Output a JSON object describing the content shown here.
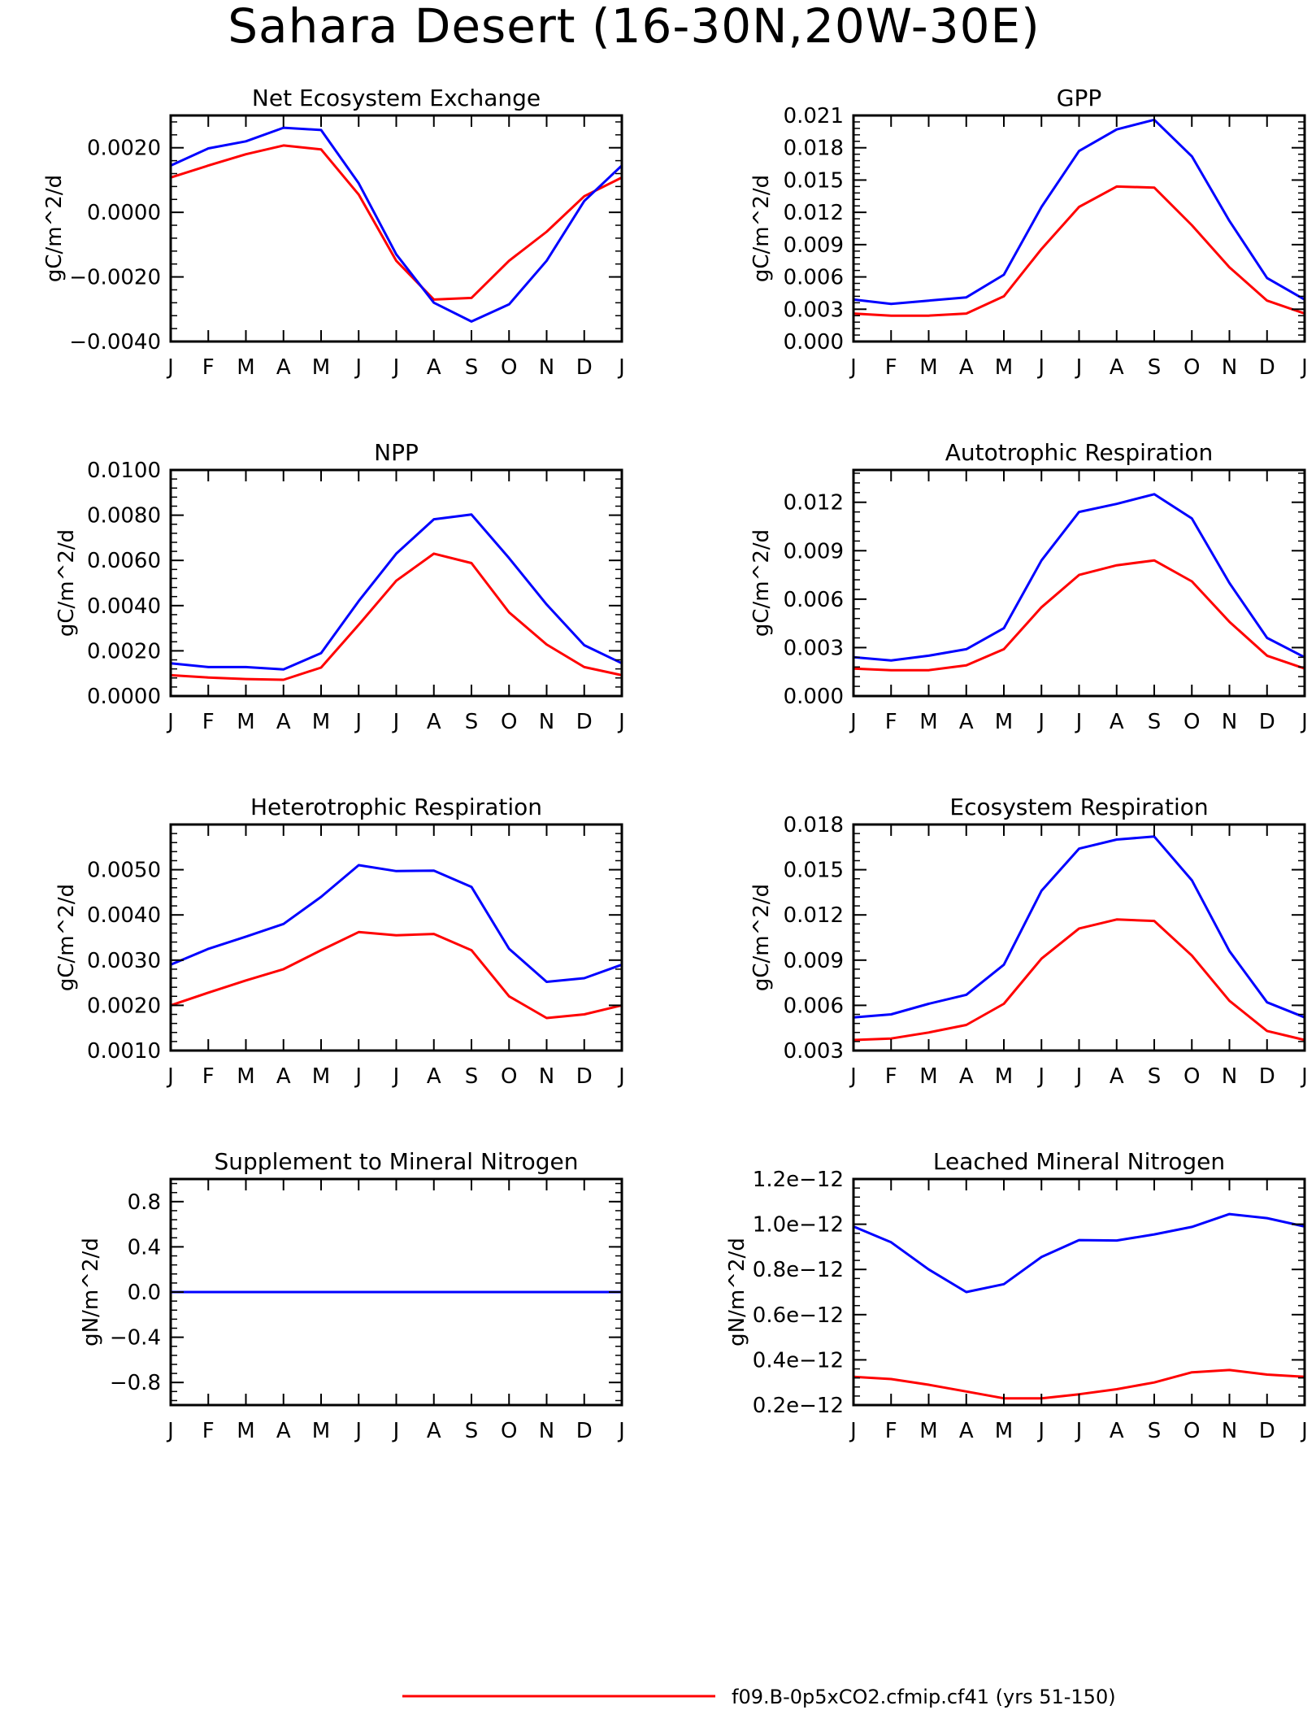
{
  "title": "Sahara Desert (16-30N,20W-30E)",
  "legend": [
    {
      "label": "f09.B-0p5xCO2.cfmip.cf41 (yrs 51-150)",
      "color": "#ff0000"
    }
  ],
  "chart_data": [
    {
      "type": "line",
      "title": "Net Ecosystem Exchange",
      "ylabel": "gC/m^2/d",
      "categories": [
        "J",
        "F",
        "M",
        "A",
        "M",
        "J",
        "J",
        "A",
        "S",
        "O",
        "N",
        "D",
        "J"
      ],
      "ylim": [
        -0.004,
        0.003
      ],
      "yticks": [
        -0.004,
        -0.002,
        0.0,
        0.002
      ],
      "ytick_labels": [
        "-0.0040",
        "-0.0020",
        "0.0000",
        "0.0020"
      ],
      "series": [
        {
          "color": "#ff0000",
          "values": [
            0.00108,
            0.00145,
            0.0018,
            0.00207,
            0.00195,
            0.00055,
            -0.0015,
            -0.0027,
            -0.00265,
            -0.0015,
            -0.0006,
            0.0005,
            0.00108
          ]
        },
        {
          "color": "#0000ff",
          "values": [
            0.00145,
            0.00198,
            0.0022,
            0.00262,
            0.00255,
            0.0009,
            -0.0013,
            -0.0028,
            -0.00338,
            -0.00285,
            -0.0015,
            0.00035,
            0.00145
          ]
        }
      ]
    },
    {
      "type": "line",
      "title": "GPP",
      "ylabel": "gC/m^2/d",
      "categories": [
        "J",
        "F",
        "M",
        "A",
        "M",
        "J",
        "J",
        "A",
        "S",
        "O",
        "N",
        "D",
        "J"
      ],
      "ylim": [
        0,
        0.021
      ],
      "yticks": [
        0,
        0.003,
        0.006,
        0.009,
        0.012,
        0.015,
        0.018,
        0.021
      ],
      "ytick_labels": [
        "0.000",
        "0.003",
        "0.006",
        "0.009",
        "0.012",
        "0.015",
        "0.018",
        "0.021"
      ],
      "series": [
        {
          "color": "#ff0000",
          "values": [
            0.0026,
            0.0024,
            0.0024,
            0.0026,
            0.0042,
            0.0086,
            0.0125,
            0.0144,
            0.0143,
            0.0108,
            0.0069,
            0.0038,
            0.0026
          ]
        },
        {
          "color": "#0000ff",
          "values": [
            0.0039,
            0.0035,
            0.0038,
            0.0041,
            0.0062,
            0.0125,
            0.0177,
            0.0197,
            0.0206,
            0.0172,
            0.0112,
            0.0059,
            0.0039
          ]
        }
      ]
    },
    {
      "type": "line",
      "title": "NPP",
      "ylabel": "gC/m^2/d",
      "categories": [
        "J",
        "F",
        "M",
        "A",
        "M",
        "J",
        "J",
        "A",
        "S",
        "O",
        "N",
        "D",
        "J"
      ],
      "ylim": [
        0,
        0.01
      ],
      "yticks": [
        0,
        0.002,
        0.004,
        0.006,
        0.008,
        0.01
      ],
      "ytick_labels": [
        "0.0000",
        "0.0020",
        "0.0040",
        "0.0060",
        "0.0080",
        "0.0100"
      ],
      "series": [
        {
          "color": "#ff0000",
          "values": [
            0.00092,
            0.00082,
            0.00075,
            0.00072,
            0.00126,
            0.00315,
            0.0051,
            0.0063,
            0.00588,
            0.0037,
            0.00228,
            0.00128,
            0.00092
          ]
        },
        {
          "color": "#0000ff",
          "values": [
            0.00145,
            0.00128,
            0.00128,
            0.00118,
            0.0019,
            0.0042,
            0.0063,
            0.00782,
            0.00803,
            0.0061,
            0.00405,
            0.00225,
            0.00145
          ]
        }
      ]
    },
    {
      "type": "line",
      "title": "Autotrophic Respiration",
      "ylabel": "gC/m^2/d",
      "categories": [
        "J",
        "F",
        "M",
        "A",
        "M",
        "J",
        "J",
        "A",
        "S",
        "O",
        "N",
        "D",
        "J"
      ],
      "ylim": [
        0,
        0.014
      ],
      "yticks": [
        0,
        0.003,
        0.006,
        0.009,
        0.012
      ],
      "ytick_labels": [
        "0.000",
        "0.003",
        "0.006",
        "0.009",
        "0.012"
      ],
      "series": [
        {
          "color": "#ff0000",
          "values": [
            0.0017,
            0.0016,
            0.0016,
            0.0019,
            0.0029,
            0.0055,
            0.0075,
            0.0081,
            0.0084,
            0.0071,
            0.0046,
            0.0025,
            0.0017
          ]
        },
        {
          "color": "#0000ff",
          "values": [
            0.0024,
            0.0022,
            0.0025,
            0.0029,
            0.0042,
            0.0084,
            0.0114,
            0.0119,
            0.0125,
            0.011,
            0.007,
            0.0036,
            0.0024
          ]
        }
      ]
    },
    {
      "type": "line",
      "title": "Heterotrophic Respiration",
      "ylabel": "gC/m^2/d",
      "categories": [
        "J",
        "F",
        "M",
        "A",
        "M",
        "J",
        "J",
        "A",
        "S",
        "O",
        "N",
        "D",
        "J"
      ],
      "ylim": [
        0.001,
        0.006
      ],
      "yticks": [
        0.001,
        0.002,
        0.003,
        0.004,
        0.005
      ],
      "ytick_labels": [
        "0.0010",
        "0.0020",
        "0.0030",
        "0.0040",
        "0.0050"
      ],
      "series": [
        {
          "color": "#ff0000",
          "values": [
            0.002,
            0.00228,
            0.00255,
            0.0028,
            0.00322,
            0.00362,
            0.00355,
            0.00358,
            0.00322,
            0.0022,
            0.00172,
            0.0018,
            0.002
          ]
        },
        {
          "color": "#0000ff",
          "values": [
            0.0029,
            0.00325,
            0.00352,
            0.0038,
            0.0044,
            0.0051,
            0.00497,
            0.00498,
            0.00462,
            0.00325,
            0.00252,
            0.0026,
            0.0029
          ]
        }
      ]
    },
    {
      "type": "line",
      "title": "Ecosystem Respiration",
      "ylabel": "gC/m^2/d",
      "categories": [
        "J",
        "F",
        "M",
        "A",
        "M",
        "J",
        "J",
        "A",
        "S",
        "O",
        "N",
        "D",
        "J"
      ],
      "ylim": [
        0.003,
        0.018
      ],
      "yticks": [
        0.003,
        0.006,
        0.009,
        0.012,
        0.015,
        0.018
      ],
      "ytick_labels": [
        "0.003",
        "0.006",
        "0.009",
        "0.012",
        "0.015",
        "0.018"
      ],
      "series": [
        {
          "color": "#ff0000",
          "values": [
            0.0037,
            0.0038,
            0.0042,
            0.0047,
            0.0061,
            0.0091,
            0.0111,
            0.0117,
            0.0116,
            0.0093,
            0.0063,
            0.0043,
            0.0037
          ]
        },
        {
          "color": "#0000ff",
          "values": [
            0.0052,
            0.0054,
            0.0061,
            0.0067,
            0.0087,
            0.0136,
            0.0164,
            0.017,
            0.0172,
            0.0143,
            0.0096,
            0.0062,
            0.0052
          ]
        }
      ]
    },
    {
      "type": "line",
      "title": "Supplement to Mineral Nitrogen",
      "ylabel": "gN/m^2/d",
      "categories": [
        "J",
        "F",
        "M",
        "A",
        "M",
        "J",
        "J",
        "A",
        "S",
        "O",
        "N",
        "D",
        "J"
      ],
      "ylim": [
        -1.0,
        1.0
      ],
      "yticks": [
        -0.8,
        -0.4,
        0.0,
        0.4,
        0.8
      ],
      "ytick_labels": [
        "-0.8",
        "-0.4",
        "0.0",
        "0.4",
        "0.8"
      ],
      "series": [
        {
          "color": "#ff0000",
          "values": [
            0,
            0,
            0,
            0,
            0,
            0,
            0,
            0,
            0,
            0,
            0,
            0,
            0
          ]
        },
        {
          "color": "#0000ff",
          "values": [
            0,
            0,
            0,
            0,
            0,
            0,
            0,
            0,
            0,
            0,
            0,
            0,
            0
          ]
        }
      ]
    },
    {
      "type": "line",
      "title": "Leached Mineral Nitrogen",
      "ylabel": "gN/m^2/d",
      "categories": [
        "J",
        "F",
        "M",
        "A",
        "M",
        "J",
        "J",
        "A",
        "S",
        "O",
        "N",
        "D",
        "J"
      ],
      "ylim": [
        2e-13,
        1.2e-12
      ],
      "yticks": [
        2e-13,
        4e-13,
        6e-13,
        8e-13,
        1e-12,
        1.2e-12
      ],
      "ytick_labels": [
        "0.2e-12",
        "0.4e-12",
        "0.6e-12",
        "0.8e-12",
        "1.0e-12",
        "1.2e-12"
      ],
      "series": [
        {
          "color": "#ff0000",
          "values": [
            3.25e-13,
            3.15e-13,
            2.9e-13,
            2.6e-13,
            2.3e-13,
            2.3e-13,
            2.48e-13,
            2.7e-13,
            3e-13,
            3.45e-13,
            3.55e-13,
            3.35e-13,
            3.25e-13
          ]
        },
        {
          "color": "#0000ff",
          "values": [
            9.9e-13,
            9.2e-13,
            8e-13,
            7e-13,
            7.35e-13,
            8.55e-13,
            9.3e-13,
            9.28e-13,
            9.55e-13,
            9.88e-13,
            1.045e-12,
            1.027e-12,
            9.9e-13
          ]
        }
      ]
    }
  ]
}
